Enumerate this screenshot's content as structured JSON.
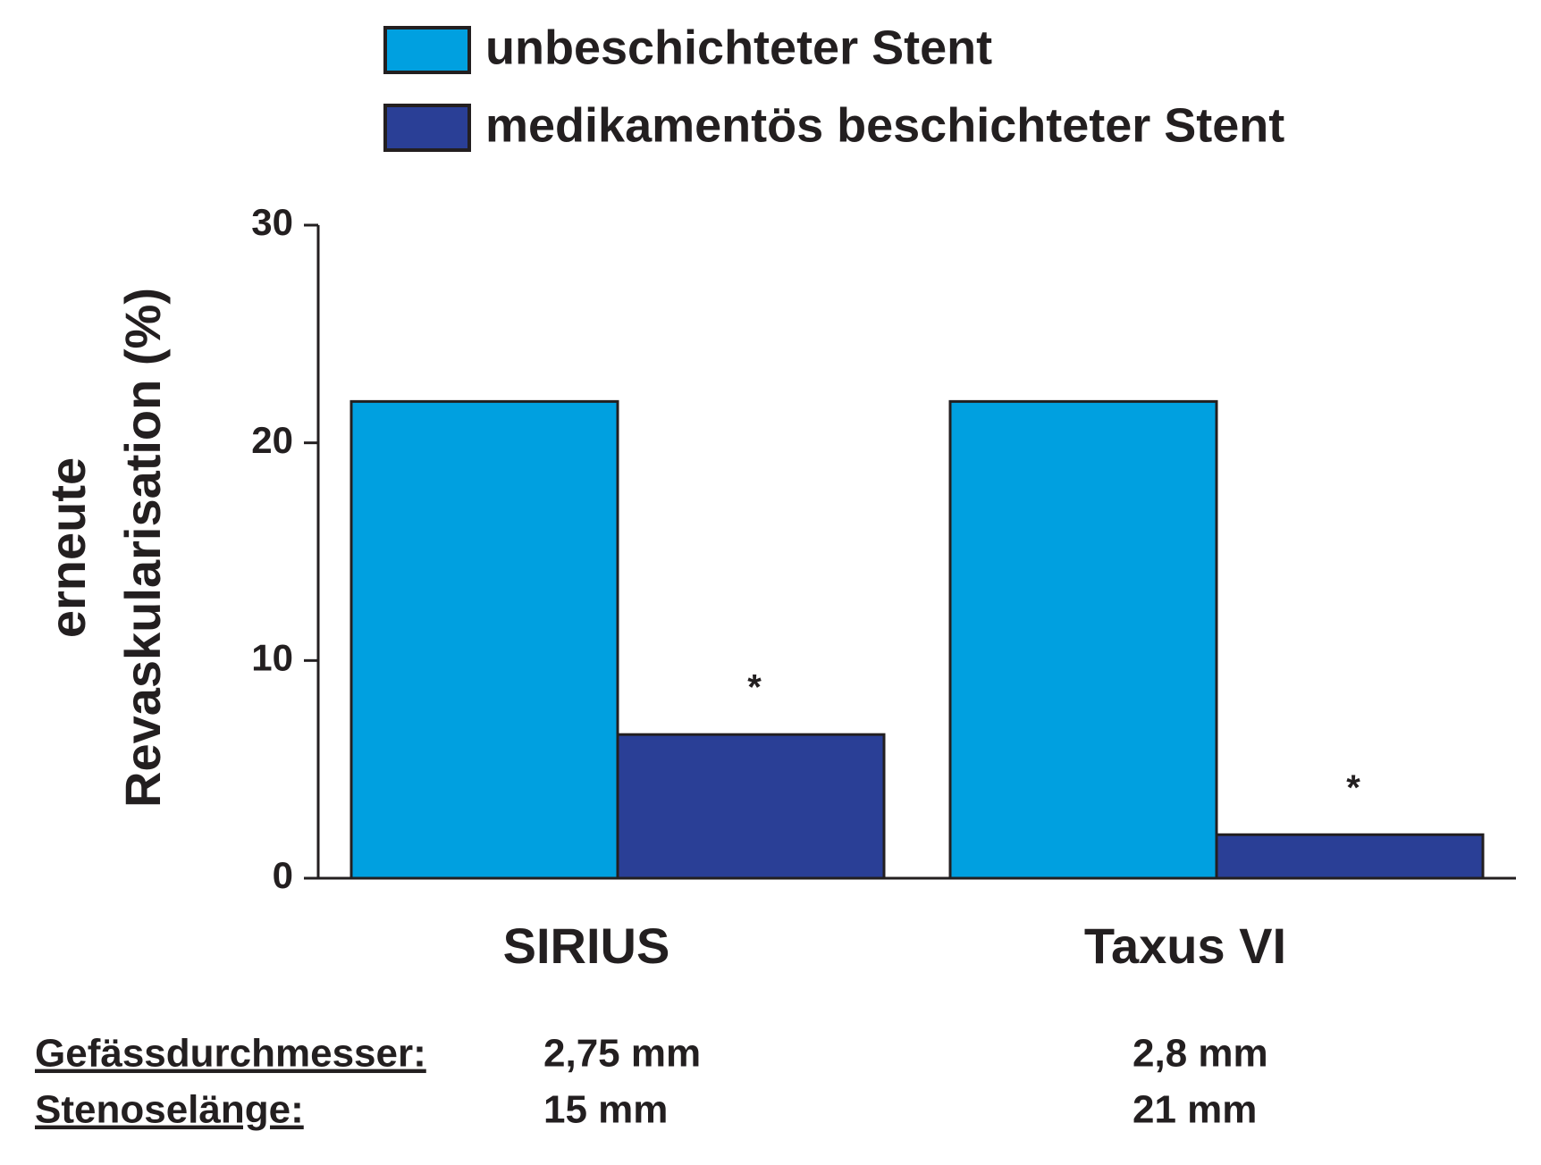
{
  "chart_data": {
    "type": "bar",
    "ylabel": [
      "erneute",
      "Revaskularisation (%)"
    ],
    "categories": [
      "SIRIUS",
      "Taxus VI"
    ],
    "series": [
      {
        "name": "unbeschichteter Stent",
        "color": "#00a0e0",
        "values": [
          21.9,
          21.9
        ]
      },
      {
        "name": "medikamentös beschichteter Stent",
        "color": "#2a3f96",
        "values": [
          6.6,
          2.0
        ],
        "annotations": [
          "*",
          "*"
        ]
      }
    ],
    "ylim": [
      0,
      30
    ],
    "yticks": [
      0,
      10,
      20,
      30
    ]
  },
  "table": {
    "rows": [
      [
        "Gefässdurchmesser:",
        "2,75 mm",
        "2,8 mm"
      ],
      [
        "Stenoselänge:",
        "15 mm",
        "21 mm"
      ]
    ]
  }
}
